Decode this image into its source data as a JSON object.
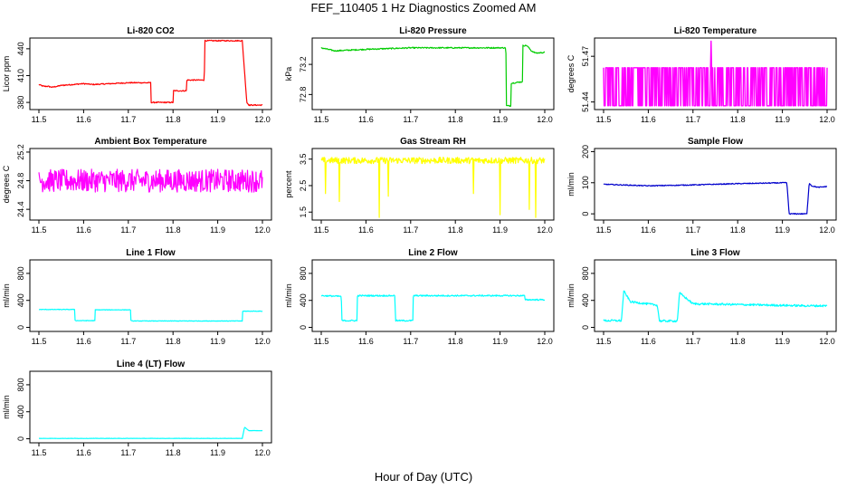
{
  "figure": {
    "title": "FEF_110405  1 Hz Diagnostics Zoomed AM",
    "xlabel": "Hour of Day (UTC)"
  },
  "chart_data": [
    {
      "type": "line",
      "title": "Li-820 CO2",
      "ylabel": "Licor ppm",
      "color": "#ff0000",
      "xlim": [
        11.5,
        12.0
      ],
      "xticks": [
        "11.5",
        "11.6",
        "11.7",
        "11.8",
        "11.9",
        "12.0"
      ],
      "ylim": [
        372,
        452
      ],
      "yticks": [
        {
          "v": 380,
          "t": "380"
        },
        {
          "v": 410,
          "t": "410"
        },
        {
          "v": 440,
          "t": "440"
        }
      ],
      "x": [
        11.5,
        11.51,
        11.52,
        11.53,
        11.55,
        11.6,
        11.62,
        11.7,
        11.74,
        11.75,
        11.751,
        11.8,
        11.801,
        11.83,
        11.831,
        11.87,
        11.871,
        11.955,
        11.965,
        11.97,
        12.0
      ],
      "y": [
        400,
        398,
        398,
        397,
        399,
        401,
        400,
        402,
        402,
        402,
        380,
        380,
        393,
        393,
        405,
        405,
        449,
        449,
        380,
        377,
        377
      ],
      "noise": 0.6
    },
    {
      "type": "line",
      "title": "Li-820 Pressure",
      "ylabel": "kPa",
      "color": "#00cc00",
      "xlim": [
        11.5,
        12.0
      ],
      "xticks": [
        "11.5",
        "11.6",
        "11.7",
        "11.8",
        "11.9",
        "12.0"
      ],
      "ylim": [
        72.6,
        73.55
      ],
      "yticks": [
        {
          "v": 72.8,
          "t": "72.8"
        },
        {
          "v": 73.2,
          "t": "73.2"
        }
      ],
      "x": [
        11.5,
        11.53,
        11.6,
        11.7,
        11.8,
        11.9,
        11.913,
        11.914,
        11.924,
        11.925,
        11.95,
        11.951,
        11.96,
        11.97,
        11.98,
        12.0
      ],
      "y": [
        73.42,
        73.38,
        73.4,
        73.42,
        73.42,
        73.42,
        73.42,
        72.65,
        72.65,
        72.95,
        72.97,
        73.45,
        73.45,
        73.38,
        73.35,
        73.36
      ],
      "noise": 0.008
    },
    {
      "type": "line",
      "title": "Li-820 Temperature",
      "ylabel": "degrees C",
      "color": "#ff00ff",
      "xlim": [
        11.5,
        12.0
      ],
      "xticks": [
        "11.5",
        "11.6",
        "11.7",
        "11.8",
        "11.9",
        "12.0"
      ],
      "ylim": [
        51.435,
        51.482
      ],
      "yticks": [
        {
          "v": 51.44,
          "t": "51.44"
        },
        {
          "v": 51.47,
          "t": "51.47"
        }
      ],
      "x": [
        11.5,
        12.0
      ],
      "y": [
        51.46,
        51.46
      ],
      "levels": [
        51.4375,
        51.4625
      ],
      "spike": {
        "x": 11.74,
        "y": 51.48
      },
      "noise": 0
    },
    {
      "type": "line",
      "title": "Ambient Box Temperature",
      "ylabel": "degrees C",
      "color": "#ff00ff",
      "xlim": [
        11.5,
        12.0
      ],
      "xticks": [
        "11.5",
        "11.6",
        "11.7",
        "11.8",
        "11.9",
        "12.0"
      ],
      "ylim": [
        24.25,
        25.25
      ],
      "yticks": [
        {
          "v": 24.4,
          "t": "24.4"
        },
        {
          "v": 24.8,
          "t": "24.8"
        },
        {
          "v": 25.2,
          "t": "25.2"
        }
      ],
      "x": [
        11.5,
        12.0
      ],
      "y": [
        24.8,
        24.8
      ],
      "noise": 0.16
    },
    {
      "type": "line",
      "title": "Gas Stream RH",
      "ylabel": "percent",
      "color": "#ffff00",
      "xlim": [
        11.5,
        12.0
      ],
      "xticks": [
        "11.5",
        "11.6",
        "11.7",
        "11.8",
        "11.9",
        "12.0"
      ],
      "ylim": [
        1.2,
        3.9
      ],
      "yticks": [
        {
          "v": 1.5,
          "t": "1.5"
        },
        {
          "v": 2.5,
          "t": "2.5"
        },
        {
          "v": 3.5,
          "t": "3.5"
        }
      ],
      "x": [
        11.5,
        12.0
      ],
      "y": [
        3.45,
        3.45
      ],
      "drops": [
        {
          "x": 11.51,
          "y": 2.2
        },
        {
          "x": 11.54,
          "y": 1.9
        },
        {
          "x": 11.63,
          "y": 1.3
        },
        {
          "x": 11.65,
          "y": 2.1
        },
        {
          "x": 11.84,
          "y": 2.2
        },
        {
          "x": 11.9,
          "y": 1.4
        },
        {
          "x": 11.965,
          "y": 1.6
        },
        {
          "x": 11.98,
          "y": 1.3
        }
      ],
      "noise": 0.12
    },
    {
      "type": "line",
      "title": "Sample Flow",
      "ylabel": "ml/min",
      "color": "#0000cc",
      "xlim": [
        11.5,
        12.0
      ],
      "xticks": [
        "11.5",
        "11.6",
        "11.7",
        "11.8",
        "11.9",
        "12.0"
      ],
      "ylim": [
        -20,
        210
      ],
      "yticks": [
        {
          "v": 0,
          "t": "0"
        },
        {
          "v": 100,
          "t": "100"
        },
        {
          "v": 200,
          "t": "200"
        }
      ],
      "x": [
        11.5,
        11.6,
        11.7,
        11.8,
        11.91,
        11.915,
        11.955,
        11.96,
        11.965,
        11.98,
        12.0
      ],
      "y": [
        95,
        90,
        93,
        97,
        100,
        0,
        0,
        100,
        90,
        85,
        88
      ],
      "noise": 1.5
    },
    {
      "type": "line",
      "title": "Line 1 Flow",
      "ylabel": "ml/min",
      "color": "#00ffff",
      "xlim": [
        11.5,
        12.0
      ],
      "xticks": [
        "11.5",
        "11.6",
        "11.7",
        "11.8",
        "11.9",
        "12.0"
      ],
      "ylim": [
        -60,
        1000
      ],
      "yticks": [
        {
          "v": 0,
          "t": "0"
        },
        {
          "v": 400,
          "t": "400"
        },
        {
          "v": 800,
          "t": "800"
        }
      ],
      "x": [
        11.5,
        11.58,
        11.581,
        11.625,
        11.626,
        11.705,
        11.706,
        11.955,
        11.956,
        12.0
      ],
      "y": [
        265,
        265,
        100,
        100,
        260,
        260,
        95,
        95,
        240,
        240
      ],
      "noise": 4
    },
    {
      "type": "line",
      "title": "Line 2 Flow",
      "ylabel": "ml/min",
      "color": "#00ffff",
      "xlim": [
        11.5,
        12.0
      ],
      "xticks": [
        "11.5",
        "11.6",
        "11.7",
        "11.8",
        "11.9",
        "12.0"
      ],
      "ylim": [
        -60,
        1000
      ],
      "yticks": [
        {
          "v": 0,
          "t": "0"
        },
        {
          "v": 400,
          "t": "400"
        },
        {
          "v": 800,
          "t": "800"
        }
      ],
      "x": [
        11.5,
        11.545,
        11.546,
        11.58,
        11.581,
        11.665,
        11.666,
        11.705,
        11.706,
        11.955,
        11.956,
        12.0
      ],
      "y": [
        470,
        460,
        100,
        100,
        470,
        470,
        100,
        100,
        470,
        470,
        410,
        410
      ],
      "noise": 10
    },
    {
      "type": "line",
      "title": "Line 3 Flow",
      "ylabel": "ml/min",
      "color": "#00ffff",
      "xlim": [
        11.5,
        12.0
      ],
      "xticks": [
        "11.5",
        "11.6",
        "11.7",
        "11.8",
        "11.9",
        "12.0"
      ],
      "ylim": [
        -60,
        1000
      ],
      "yticks": [
        {
          "v": 0,
          "t": "0"
        },
        {
          "v": 400,
          "t": "400"
        },
        {
          "v": 800,
          "t": "800"
        }
      ],
      "x": [
        11.5,
        11.54,
        11.545,
        11.56,
        11.62,
        11.625,
        11.665,
        11.67,
        11.7,
        11.955,
        11.96,
        12.0
      ],
      "y": [
        100,
        100,
        540,
        380,
        330,
        95,
        95,
        510,
        350,
        320,
        320,
        320
      ],
      "noise": 15
    },
    {
      "type": "line",
      "title": "Line 4 (LT) Flow",
      "ylabel": "ml/min",
      "color": "#00ffff",
      "xlim": [
        11.5,
        12.0
      ],
      "xticks": [
        "11.5",
        "11.6",
        "11.7",
        "11.8",
        "11.9",
        "12.0"
      ],
      "ylim": [
        -60,
        1000
      ],
      "yticks": [
        {
          "v": 0,
          "t": "0"
        },
        {
          "v": 400,
          "t": "400"
        },
        {
          "v": 800,
          "t": "800"
        }
      ],
      "x": [
        11.5,
        11.955,
        11.96,
        11.97,
        12.0
      ],
      "y": [
        5,
        5,
        170,
        120,
        120
      ],
      "noise": 2
    }
  ]
}
